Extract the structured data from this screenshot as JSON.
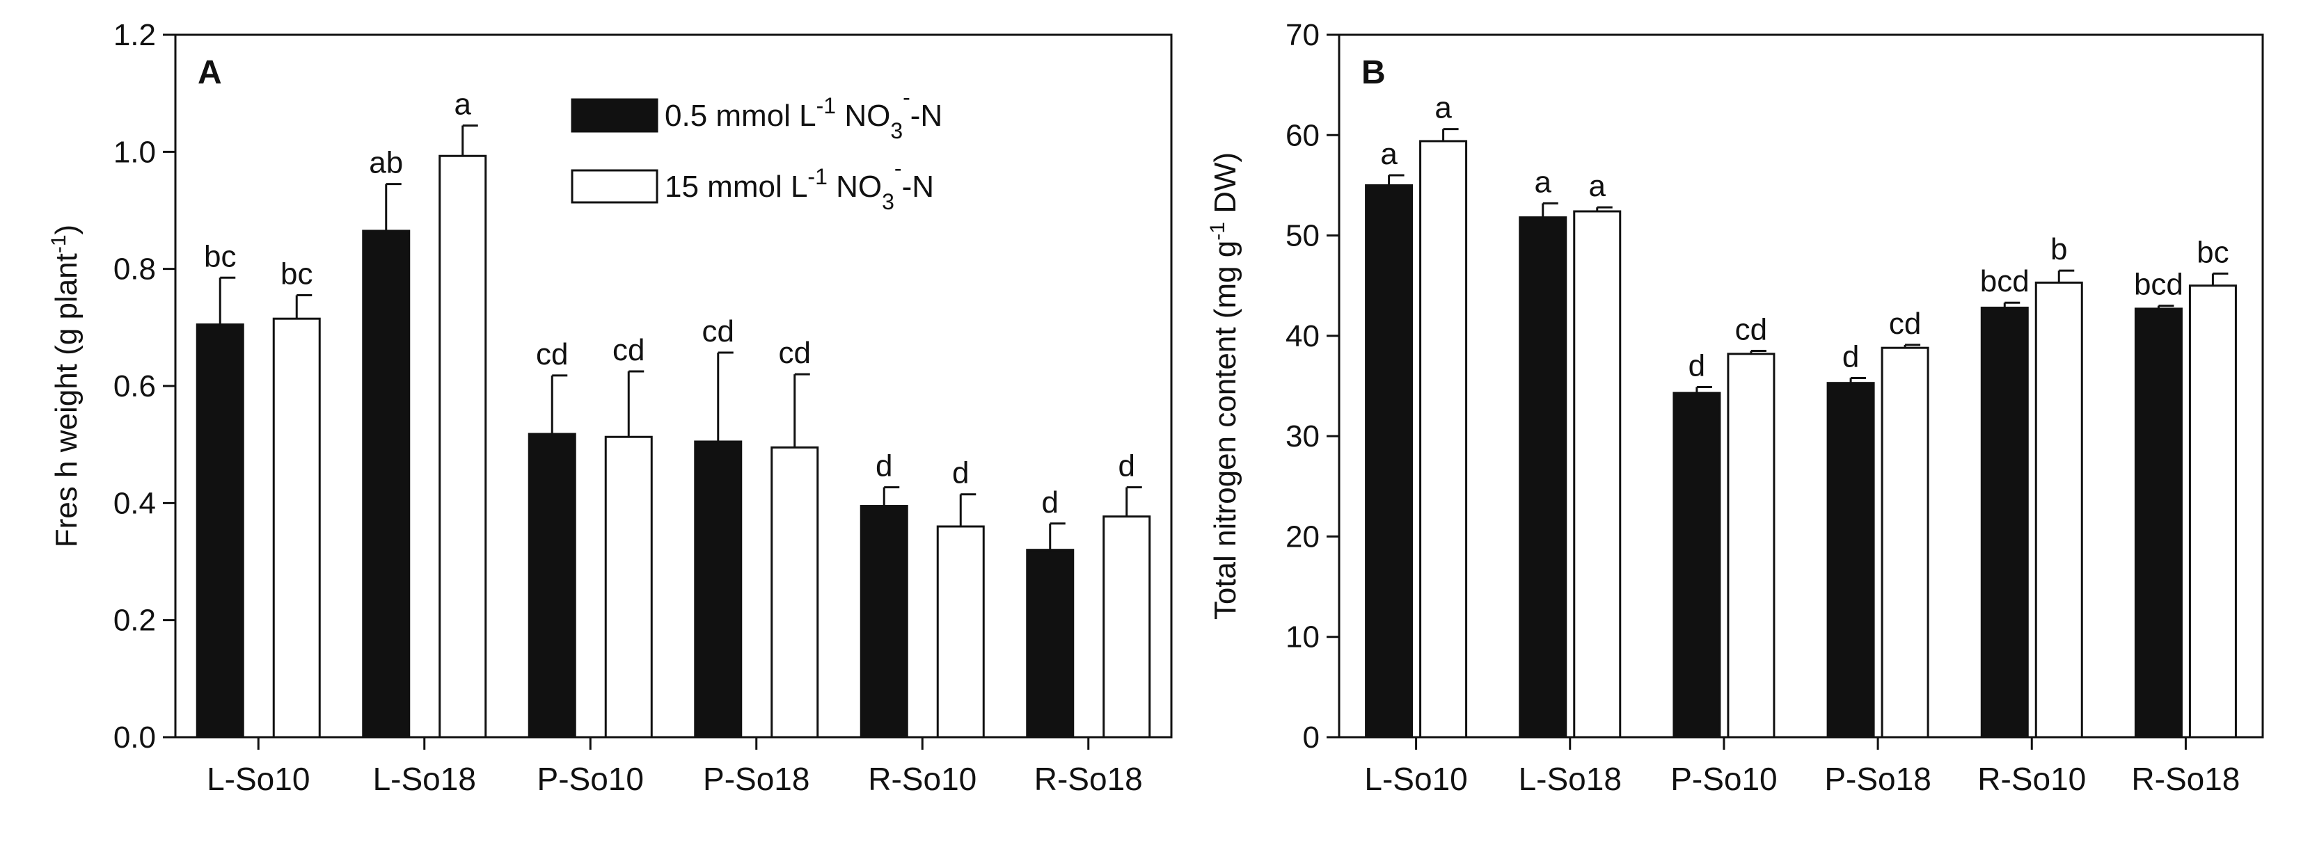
{
  "chart_data": [
    {
      "type": "bar",
      "panel_label": "A",
      "categories": [
        "L-So10",
        "L-So18",
        "P-So10",
        "P-So18",
        "R-So10",
        "R-So18"
      ],
      "ylabel": "Fres h weight (g plant",
      "ylabel_sup": "-1",
      "ylabel_tail": ")",
      "ylim": [
        0,
        1.2
      ],
      "yticks": [
        "0.0",
        "0.2",
        "0.4",
        "0.6",
        "0.8",
        "1.0",
        "1.2"
      ],
      "ytick_values": [
        0,
        0.2,
        0.4,
        0.6,
        0.8,
        1.0,
        1.2
      ],
      "legend_position": "top-center",
      "series": [
        {
          "name": "0.5 mmol L-1 NO3--N",
          "legend": {
            "a": "0.5 mmol L",
            "a_sup": "-1",
            "b": "NO",
            "b_sub": "3",
            "b_sup": "-",
            "c": "-N"
          },
          "color": "#111111",
          "values": [
            0.705,
            0.865,
            0.518,
            0.505,
            0.395,
            0.32
          ],
          "errors": [
            0.08,
            0.08,
            0.1,
            0.152,
            0.032,
            0.045
          ],
          "letters": [
            "bc",
            "ab",
            "cd",
            "cd",
            "d",
            "d"
          ]
        },
        {
          "name": "15 mmol L-1 NO3--N",
          "legend": {
            "a": "15 mmol L",
            "a_sup": "-1",
            "b": "NO",
            "b_sub": "3",
            "b_sup": "-",
            "c": "-N"
          },
          "color": "#ffffff",
          "values": [
            0.715,
            0.993,
            0.513,
            0.495,
            0.36,
            0.377
          ],
          "errors": [
            0.04,
            0.052,
            0.112,
            0.125,
            0.055,
            0.05
          ],
          "letters": [
            "bc",
            "a",
            "cd",
            "cd",
            "d",
            "d"
          ]
        }
      ]
    },
    {
      "type": "bar",
      "panel_label": "B",
      "categories": [
        "L-So10",
        "L-So18",
        "P-So10",
        "P-So18",
        "R-So10",
        "R-So18"
      ],
      "ylabel": "Total nitrogen content (mg g",
      "ylabel_sup": "-1",
      "ylabel_tail": " DW)",
      "ylim": [
        0,
        70
      ],
      "yticks": [
        "0",
        "10",
        "20",
        "30",
        "40",
        "50",
        "60",
        "70"
      ],
      "ytick_values": [
        0,
        10,
        20,
        30,
        40,
        50,
        60,
        70
      ],
      "series": [
        {
          "name": "0.5 mmol L-1 NO3--N",
          "color": "#111111",
          "values": [
            55,
            51.8,
            34.3,
            35.3,
            42.8,
            42.7
          ],
          "errors": [
            1.0,
            1.4,
            0.6,
            0.5,
            0.5,
            0.3
          ],
          "letters": [
            "a",
            "a",
            "d",
            "d",
            "bcd",
            "bcd"
          ]
        },
        {
          "name": "15 mmol L-1 NO3--N",
          "color": "#ffffff",
          "values": [
            59.4,
            52.4,
            38.2,
            38.8,
            45.3,
            45.0
          ],
          "errors": [
            1.2,
            0.4,
            0.3,
            0.3,
            1.2,
            1.2
          ],
          "letters": [
            "a",
            "a",
            "cd",
            "cd",
            "b",
            "bc"
          ]
        }
      ]
    }
  ]
}
